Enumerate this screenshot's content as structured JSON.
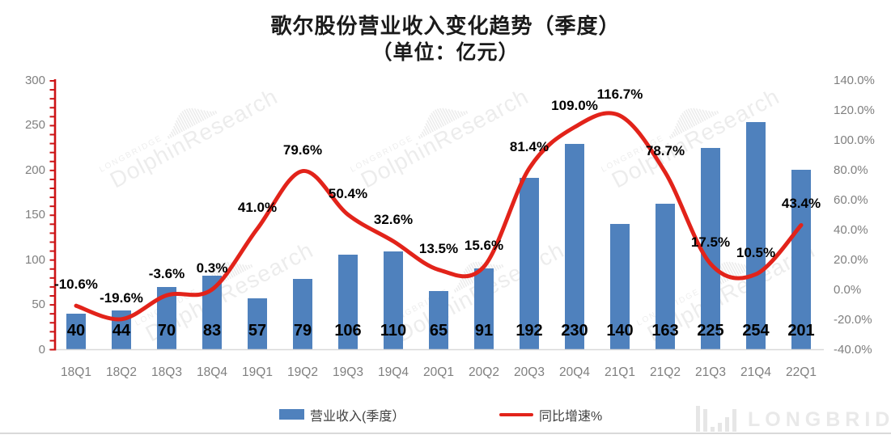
{
  "title": {
    "line1": "歌尔股份营业收入变化趋势（季度）",
    "line2": "（单位：亿元）"
  },
  "chart_data": {
    "type": "bar+line combo",
    "categories": [
      "18Q1",
      "18Q2",
      "18Q3",
      "18Q4",
      "19Q1",
      "19Q2",
      "19Q3",
      "19Q4",
      "20Q1",
      "20Q2",
      "20Q3",
      "20Q4",
      "21Q1",
      "21Q2",
      "21Q3",
      "21Q4",
      "22Q1"
    ],
    "series": [
      {
        "name": "营业收入(季度）",
        "type": "bar",
        "axis": "left",
        "color": "#4f81bd",
        "values": [
          40,
          44,
          70,
          83,
          57,
          79,
          106,
          110,
          65,
          91,
          192,
          230,
          140,
          163,
          225,
          254,
          201
        ]
      },
      {
        "name": "同比增速%",
        "type": "line",
        "axis": "right",
        "color": "#e2231a",
        "values": [
          -10.6,
          -19.6,
          -3.6,
          0.3,
          41.0,
          79.6,
          50.4,
          32.6,
          13.5,
          15.6,
          81.4,
          109.0,
          116.7,
          78.7,
          17.5,
          10.5,
          43.4
        ]
      }
    ],
    "left_axis": {
      "min": 0,
      "max": 300,
      "tick_step": 50,
      "tick_labels": [
        "0",
        "50",
        "100",
        "150",
        "200",
        "250",
        "300"
      ]
    },
    "right_axis": {
      "min": -40,
      "max": 140,
      "tick_step": 20,
      "tick_labels": [
        "-40.0%",
        "-20.0%",
        "0.0%",
        "20.0%",
        "40.0%",
        "60.0%",
        "80.0%",
        "100.0%",
        "120.0%",
        "140.0%"
      ]
    },
    "grid": false,
    "legend_position": "bottom",
    "title": "歌尔股份营业收入变化趋势（季度）",
    "subtitle": "（单位：亿元）"
  },
  "legend": {
    "bar_label": "营业收入(季度）",
    "line_label": "同比增速%"
  },
  "watermark": {
    "small_text": "LONGBRIDGE",
    "big_text": "DolphinResearch"
  },
  "footer": {
    "logo_text": "LONGBRIDGE"
  }
}
